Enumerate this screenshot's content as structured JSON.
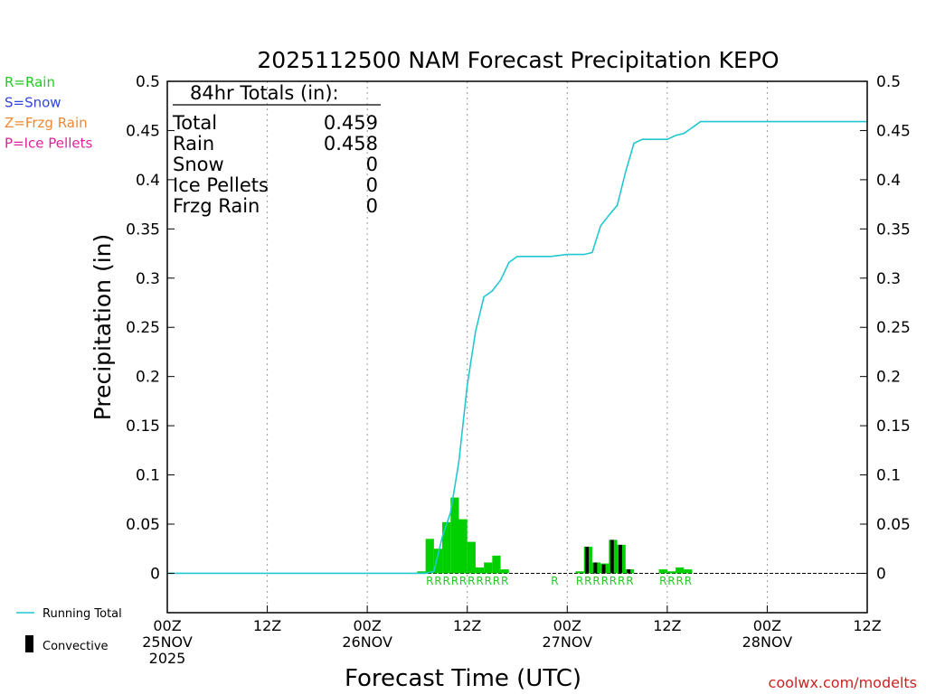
{
  "chart_data": {
    "type": "bar",
    "title": "2025112500 NAM Forecast Precipitation KEPO",
    "xlabel": "Forecast Time (UTC)",
    "ylabel": "Precipitation (in)",
    "ylim": [
      -0.04,
      0.5
    ],
    "xlim_hours": [
      0,
      84
    ],
    "bar_width_hours": 1,
    "y_ticks": [
      {
        "v": 0,
        "label": "0"
      },
      {
        "v": 0.05,
        "label": "0.05"
      },
      {
        "v": 0.1,
        "label": "0.1"
      },
      {
        "v": 0.15,
        "label": "0.15"
      },
      {
        "v": 0.2,
        "label": "0.2"
      },
      {
        "v": 0.25,
        "label": "0.25"
      },
      {
        "v": 0.3,
        "label": "0.3"
      },
      {
        "v": 0.35,
        "label": "0.35"
      },
      {
        "v": 0.4,
        "label": "0.4"
      },
      {
        "v": 0.45,
        "label": "0.45"
      },
      {
        "v": 0.5,
        "label": "0.5"
      }
    ],
    "x_ticks": [
      {
        "h": 0,
        "lines": [
          "00Z",
          "25NOV",
          "2025"
        ]
      },
      {
        "h": 12,
        "lines": [
          "12Z"
        ]
      },
      {
        "h": 24,
        "lines": [
          "00Z",
          "26NOV"
        ]
      },
      {
        "h": 36,
        "lines": [
          "12Z"
        ]
      },
      {
        "h": 48,
        "lines": [
          "00Z",
          "27NOV"
        ]
      },
      {
        "h": 60,
        "lines": [
          "12Z"
        ]
      },
      {
        "h": 72,
        "lines": [
          "00Z",
          "28NOV"
        ]
      },
      {
        "h": 84,
        "lines": [
          "12Z"
        ]
      }
    ],
    "precip_bars": [
      {
        "h": 31,
        "v": 0.002
      },
      {
        "h": 32,
        "v": 0.035
      },
      {
        "h": 33,
        "v": 0.025
      },
      {
        "h": 34,
        "v": 0.052
      },
      {
        "h": 35,
        "v": 0.077
      },
      {
        "h": 36,
        "v": 0.055
      },
      {
        "h": 37,
        "v": 0.032
      },
      {
        "h": 38,
        "v": 0.006
      },
      {
        "h": 39,
        "v": 0.011
      },
      {
        "h": 40,
        "v": 0.018
      },
      {
        "h": 41,
        "v": 0.004
      },
      {
        "h": 50,
        "v": 0.002
      },
      {
        "h": 51,
        "v": 0.027
      },
      {
        "h": 52,
        "v": 0.011
      },
      {
        "h": 53,
        "v": 0.01
      },
      {
        "h": 54,
        "v": 0.034
      },
      {
        "h": 55,
        "v": 0.029
      },
      {
        "h": 56,
        "v": 0.004
      },
      {
        "h": 60,
        "v": 0.004
      },
      {
        "h": 61,
        "v": 0.002
      },
      {
        "h": 62,
        "v": 0.006
      },
      {
        "h": 63,
        "v": 0.004
      }
    ],
    "convective_bars": [
      {
        "h": 51,
        "v": 0.027
      },
      {
        "h": 52,
        "v": 0.011
      },
      {
        "h": 53,
        "v": 0.009
      },
      {
        "h": 54,
        "v": 0.034
      },
      {
        "h": 55,
        "v": 0.029
      },
      {
        "h": 56,
        "v": 0.004
      }
    ],
    "running_total": [
      [
        0,
        0
      ],
      [
        31,
        0
      ],
      [
        32,
        0.002
      ],
      [
        33,
        0.037
      ],
      [
        34,
        0.062
      ],
      [
        35,
        0.114
      ],
      [
        36,
        0.191
      ],
      [
        37,
        0.246
      ],
      [
        38,
        0.281
      ],
      [
        39,
        0.287
      ],
      [
        40,
        0.298
      ],
      [
        41,
        0.316
      ],
      [
        42,
        0.322
      ],
      [
        43,
        0.322
      ],
      [
        44,
        0.322
      ],
      [
        45,
        0.322
      ],
      [
        46,
        0.322
      ],
      [
        47,
        0.323
      ],
      [
        48,
        0.324
      ],
      [
        49,
        0.324
      ],
      [
        50,
        0.324
      ],
      [
        51,
        0.326
      ],
      [
        52,
        0.353
      ],
      [
        53,
        0.364
      ],
      [
        54,
        0.374
      ],
      [
        55,
        0.408
      ],
      [
        56,
        0.437
      ],
      [
        57,
        0.441
      ],
      [
        58,
        0.441
      ],
      [
        59,
        0.441
      ],
      [
        60,
        0.441
      ],
      [
        61,
        0.445
      ],
      [
        62,
        0.447
      ],
      [
        63,
        0.453
      ],
      [
        64,
        0.459
      ],
      [
        84,
        0.459
      ]
    ],
    "precip_type_marks": [
      {
        "h": 32,
        "label": "R"
      },
      {
        "h": 33,
        "label": "R"
      },
      {
        "h": 34,
        "label": "R"
      },
      {
        "h": 35,
        "label": "R"
      },
      {
        "h": 36,
        "label": "R"
      },
      {
        "h": 37,
        "label": "R"
      },
      {
        "h": 38,
        "label": "R"
      },
      {
        "h": 39,
        "label": "R"
      },
      {
        "h": 40,
        "label": "R"
      },
      {
        "h": 41,
        "label": "R"
      },
      {
        "h": 47,
        "label": "R"
      },
      {
        "h": 50,
        "label": "R"
      },
      {
        "h": 51,
        "label": "R"
      },
      {
        "h": 52,
        "label": "R"
      },
      {
        "h": 53,
        "label": "R"
      },
      {
        "h": 54,
        "label": "R"
      },
      {
        "h": 55,
        "label": "R"
      },
      {
        "h": 56,
        "label": "R"
      },
      {
        "h": 60,
        "label": "R"
      },
      {
        "h": 61,
        "label": "R"
      },
      {
        "h": 62,
        "label": "R"
      },
      {
        "h": 63,
        "label": "R"
      }
    ],
    "totals_box": {
      "header": "84hr Totals (in):",
      "rows": [
        {
          "label": "Total",
          "value": "0.459"
        },
        {
          "label": "Rain",
          "value": "0.458"
        },
        {
          "label": "Snow",
          "value": "0"
        },
        {
          "label": "Ice Pellets",
          "value": "0"
        },
        {
          "label": "Frzg Rain",
          "value": "0"
        }
      ]
    },
    "type_legend": [
      {
        "text": "R=Rain",
        "color": "#22cc22"
      },
      {
        "text": "S=Snow",
        "color": "#3344dd"
      },
      {
        "text": "Z=Frzg Rain",
        "color": "#ee8833"
      },
      {
        "text": "P=Ice Pellets",
        "color": "#dd2299"
      }
    ],
    "series_legend": [
      {
        "text": "Running Total",
        "kind": "line",
        "color": "#22c8d0"
      },
      {
        "text": "Convective",
        "kind": "bar",
        "color": "#000000"
      }
    ],
    "credit": "coolwx.com/modelts",
    "colors": {
      "precip": "#00d000",
      "convective": "#000000",
      "running_total": "#22c8d0",
      "type_marks": "#22cc22",
      "credit": "#cc2222",
      "grid": "#999999"
    }
  }
}
